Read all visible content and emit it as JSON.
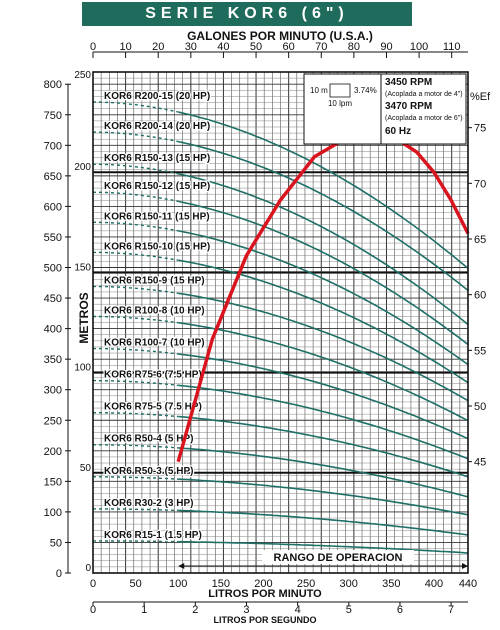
{
  "header": {
    "title": "SERIE KOR6 (6\")"
  },
  "chart_data": {
    "type": "line",
    "title": "SERIE KOR6 (6\")",
    "x_top": {
      "label": "GALONES POR MINUTO (U.S.A.)",
      "min": 0,
      "max": 115,
      "ticks": [
        0,
        10,
        20,
        30,
        40,
        50,
        60,
        70,
        80,
        90,
        100,
        110
      ]
    },
    "x_main": {
      "label": "LITROS POR MINUTO",
      "min": 0,
      "max": 440,
      "ticks": [
        0,
        50,
        100,
        150,
        200,
        250,
        300,
        350,
        400,
        440
      ]
    },
    "x_bottom": {
      "label": "LITROS POR SEGUNDO",
      "min": 0,
      "max": 7.33,
      "ticks": [
        0,
        1,
        2,
        3,
        4,
        5,
        6,
        7
      ]
    },
    "y_left_feet": {
      "min": 0,
      "max": 820,
      "ticks": [
        0,
        50,
        100,
        150,
        200,
        250,
        300,
        350,
        400,
        450,
        500,
        550,
        600,
        650,
        700,
        750,
        800
      ]
    },
    "y_metros": {
      "label": "METROS",
      "min": 0,
      "max": 250,
      "ticks": [
        0,
        50,
        100,
        150,
        200,
        250
      ]
    },
    "y_efficiency": {
      "label": "%Ef",
      "ticks": [
        45,
        50,
        55,
        60,
        65,
        70,
        75
      ],
      "min": 35,
      "max": 80
    },
    "legend": {
      "rpm1": "3450 RPM",
      "note1": "(Acoplada a motor de 4\")",
      "rpm2": "3470 RPM",
      "note2": "(Acoplada a motor de 6\")",
      "freq": "60 Hz",
      "scale_head": "10 m",
      "scale_flow": "10 lpm",
      "scale_eff": "3.74%"
    },
    "operating_range": {
      "label": "RANGO DE OPERACION",
      "from_lpm": 100,
      "to_lpm": 440
    },
    "grid": true,
    "series": [
      {
        "name": "KOR6 R200-15 (20 HP)",
        "shutoff_m": 235,
        "end_m": 152
      },
      {
        "name": "KOR6 R200-14 (20 HP)",
        "shutoff_m": 220,
        "end_m": 141
      },
      {
        "name": "KOR6 R150-13 (15 HP)",
        "shutoff_m": 204,
        "end_m": 124
      },
      {
        "name": "KOR6 R150-12 (15 HP)",
        "shutoff_m": 190,
        "end_m": 114
      },
      {
        "name": "KOR6 R150-11 (15 HP)",
        "shutoff_m": 175,
        "end_m": 104
      },
      {
        "name": "KOR6 R150-10 (15 HP)",
        "shutoff_m": 160,
        "end_m": 95
      },
      {
        "name": "KOR6 R150-9 (15 HP)",
        "shutoff_m": 143,
        "end_m": 86
      },
      {
        "name": "KOR6 R100-8 (10 HP)",
        "shutoff_m": 128,
        "end_m": 76
      },
      {
        "name": "KOR6 R100-7 (10 HP)",
        "shutoff_m": 112,
        "end_m": 67
      },
      {
        "name": "KOR6 R75-6 (7.5 HP)",
        "shutoff_m": 96,
        "end_m": 57
      },
      {
        "name": "KOR6 R75-5 (7.5 HP)",
        "shutoff_m": 80,
        "end_m": 48
      },
      {
        "name": "KOR6 R50-4 (5 HP)",
        "shutoff_m": 64,
        "end_m": 38
      },
      {
        "name": "KOR6 R50-3 (5 HP)",
        "shutoff_m": 48,
        "end_m": 29
      },
      {
        "name": "KOR6 R30-2 (3 HP)",
        "shutoff_m": 32,
        "end_m": 19
      },
      {
        "name": "KOR6 R15-1 (1.5 HP)",
        "shutoff_m": 16,
        "end_m": 10
      }
    ],
    "efficiency_curve": {
      "x_lpm": [
        100,
        140,
        180,
        220,
        260,
        300,
        320,
        340,
        360,
        380,
        400,
        420,
        440
      ],
      "y_pct": [
        45,
        56,
        63.5,
        68.5,
        72.4,
        74.2,
        74.5,
        74.3,
        73.8,
        72.8,
        71,
        68.5,
        65.5
      ]
    }
  }
}
